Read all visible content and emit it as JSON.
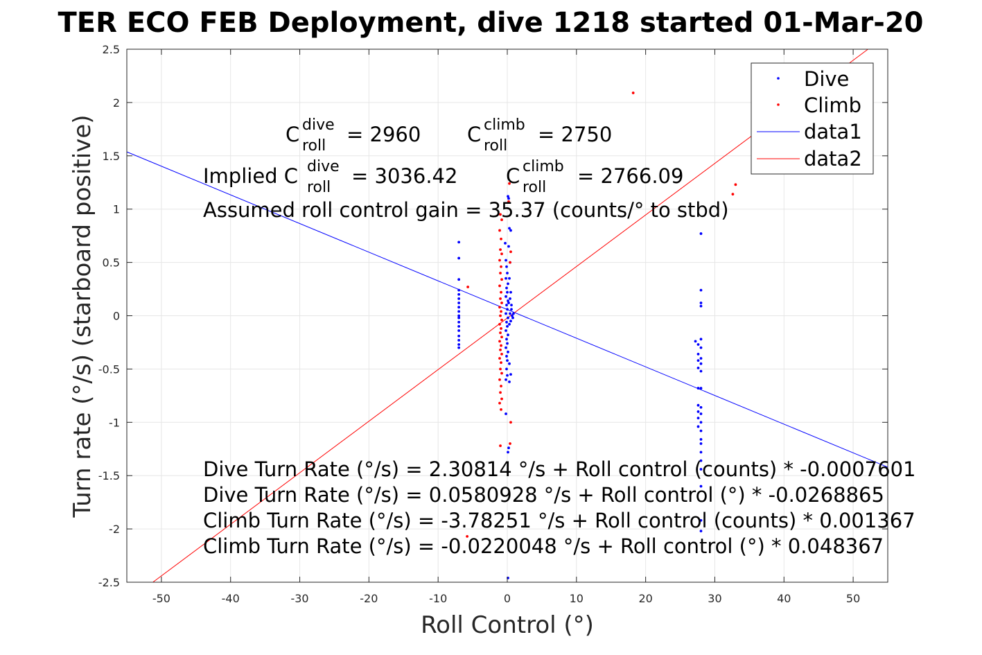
{
  "chart_data": {
    "type": "scatter",
    "title": "TER ECO FEB Deployment, dive 1218 started 01-Mar-20",
    "xlabel": "Roll Control (°)",
    "ylabel": "Turn rate (°/s) (starboard positive)",
    "xlim": [
      -55,
      55
    ],
    "ylim": [
      -2.5,
      2.5
    ],
    "xticks": [
      -50,
      -40,
      -30,
      -20,
      -10,
      0,
      10,
      20,
      30,
      40,
      50
    ],
    "yticks": [
      -2.5,
      -2,
      -1.5,
      -1,
      -0.5,
      0,
      0.5,
      1,
      1.5,
      2,
      2.5
    ],
    "ytick_labels": [
      "-2.5",
      "-2",
      "-1.5",
      "-1",
      "-0.5",
      "0",
      "0.5",
      "1",
      "1.5",
      "2",
      "2.5"
    ],
    "grid": true,
    "legend_position": "top-right",
    "series": [
      {
        "name": "Dive",
        "kind": "points",
        "color": "#0000ff",
        "points": [
          [
            -7,
            0.69
          ],
          [
            -7,
            0.54
          ],
          [
            -7,
            0.34
          ],
          [
            -7,
            0.24
          ],
          [
            -7,
            0.2
          ],
          [
            -7,
            0.16
          ],
          [
            -7,
            0.12
          ],
          [
            -7,
            0.08
          ],
          [
            -7,
            0.04
          ],
          [
            -7,
            0.0
          ],
          [
            -7,
            -0.02
          ],
          [
            -7,
            -0.06
          ],
          [
            -7,
            -0.1
          ],
          [
            -7,
            -0.14
          ],
          [
            -7,
            -0.19
          ],
          [
            -7,
            -0.23
          ],
          [
            -7,
            -0.27
          ],
          [
            -7,
            -0.3
          ],
          [
            -0.3,
            0.68
          ],
          [
            -0.2,
            0.52
          ],
          [
            -0.1,
            0.46
          ],
          [
            0.0,
            0.4
          ],
          [
            -0.2,
            0.35
          ],
          [
            0.1,
            0.3
          ],
          [
            -0.1,
            0.26
          ],
          [
            0.0,
            0.22
          ],
          [
            -0.2,
            0.18
          ],
          [
            0.1,
            0.14
          ],
          [
            -0.1,
            0.1
          ],
          [
            0.0,
            0.06
          ],
          [
            -0.2,
            0.02
          ],
          [
            0.1,
            -0.02
          ],
          [
            -0.1,
            -0.06
          ],
          [
            0.0,
            -0.1
          ],
          [
            -0.2,
            -0.14
          ],
          [
            0.1,
            -0.18
          ],
          [
            -0.1,
            -0.22
          ],
          [
            0.0,
            -0.26
          ],
          [
            -0.2,
            -0.3
          ],
          [
            0.1,
            -0.34
          ],
          [
            -0.1,
            -0.38
          ],
          [
            0.0,
            -0.42
          ],
          [
            -0.1,
            -0.5
          ],
          [
            0.0,
            -0.56
          ],
          [
            -0.2,
            -0.6
          ],
          [
            0.3,
            -0.62
          ],
          [
            -0.2,
            -0.92
          ],
          [
            0.2,
            -1.24
          ],
          [
            0.1,
            -1.28
          ],
          [
            0.1,
            -2.46
          ],
          [
            0.1,
            1.12
          ],
          [
            0.2,
            1.1
          ],
          [
            0.3,
            0.82
          ],
          [
            0.5,
            0.8
          ],
          [
            0.2,
            0.65
          ],
          [
            0.4,
            0.5
          ],
          [
            0.3,
            0.35
          ],
          [
            0.5,
            0.22
          ],
          [
            0.2,
            0.12
          ],
          [
            0.6,
            0.06
          ],
          [
            0.4,
            0.02
          ],
          [
            0.7,
            0.0
          ],
          [
            0.8,
            -0.02
          ],
          [
            0.5,
            -0.05
          ],
          [
            0.9,
            0.02
          ],
          [
            0.3,
            -0.08
          ],
          [
            0.6,
            0.1
          ],
          [
            0.4,
            0.16
          ],
          [
            0.5,
            -0.55
          ],
          [
            0.3,
            -0.45
          ],
          [
            28,
            0.77
          ],
          [
            28,
            0.24
          ],
          [
            28,
            0.12
          ],
          [
            28,
            0.09
          ],
          [
            27.2,
            -0.24
          ],
          [
            28,
            -0.22
          ],
          [
            27.6,
            -0.27
          ],
          [
            28,
            -0.3
          ],
          [
            27.6,
            -0.36
          ],
          [
            28,
            -0.4
          ],
          [
            27.6,
            -0.42
          ],
          [
            28,
            -0.45
          ],
          [
            27.6,
            -0.49
          ],
          [
            28,
            -0.52
          ],
          [
            27.6,
            -0.68
          ],
          [
            28,
            -0.68
          ],
          [
            27.6,
            -0.84
          ],
          [
            28,
            -0.86
          ],
          [
            27.6,
            -0.9
          ],
          [
            28,
            -0.92
          ],
          [
            27.6,
            -0.96
          ],
          [
            28,
            -1.0
          ],
          [
            27.6,
            -1.04
          ],
          [
            28,
            -1.08
          ],
          [
            28,
            -1.16
          ],
          [
            28,
            -1.2
          ],
          [
            28,
            -1.28
          ],
          [
            28,
            -1.36
          ],
          [
            28,
            -1.44
          ],
          [
            28,
            -1.6
          ],
          [
            28,
            -1.92
          ],
          [
            28,
            -2.02
          ]
        ]
      },
      {
        "name": "Climb",
        "kind": "points",
        "color": "#ff0000",
        "points": [
          [
            18.2,
            2.09
          ],
          [
            33.0,
            1.23
          ],
          [
            32.6,
            1.14
          ],
          [
            -5.7,
            0.27
          ],
          [
            -5.8,
            -2.07
          ],
          [
            0.3,
            1.24
          ],
          [
            0.2,
            1.07
          ],
          [
            0.5,
            0.6
          ],
          [
            0.4,
            0.5
          ],
          [
            0.5,
            -1.0
          ],
          [
            0.4,
            -1.2
          ],
          [
            -1.0,
            -1.22
          ],
          [
            -1.0,
            0.95
          ],
          [
            -0.8,
            0.9
          ],
          [
            -1.1,
            0.8
          ],
          [
            -0.9,
            0.72
          ],
          [
            -1.0,
            0.62
          ],
          [
            -0.8,
            0.58
          ],
          [
            -1.1,
            0.52
          ],
          [
            -0.9,
            0.46
          ],
          [
            -1.0,
            0.4
          ],
          [
            -0.8,
            0.34
          ],
          [
            -1.1,
            0.28
          ],
          [
            -0.9,
            0.22
          ],
          [
            -1.0,
            0.16
          ],
          [
            -0.8,
            0.12
          ],
          [
            -1.1,
            0.08
          ],
          [
            -0.9,
            0.04
          ],
          [
            -1.0,
            0.0
          ],
          [
            -0.8,
            -0.04
          ],
          [
            -1.1,
            -0.08
          ],
          [
            -0.9,
            -0.12
          ],
          [
            -1.0,
            -0.16
          ],
          [
            -0.8,
            -0.2
          ],
          [
            -1.1,
            -0.24
          ],
          [
            -0.9,
            -0.28
          ],
          [
            -1.0,
            -0.32
          ],
          [
            -0.8,
            -0.36
          ],
          [
            -1.1,
            -0.4
          ],
          [
            -0.9,
            -0.44
          ],
          [
            -1.0,
            -0.5
          ],
          [
            -0.8,
            -0.54
          ],
          [
            -1.1,
            -0.6
          ],
          [
            -0.9,
            -0.66
          ],
          [
            -1.0,
            -0.72
          ],
          [
            -0.8,
            -0.78
          ],
          [
            -1.1,
            -0.82
          ],
          [
            -0.9,
            -0.88
          ]
        ]
      },
      {
        "name": "data1",
        "kind": "line",
        "color": "#0000ff",
        "intercept": 0.0580928,
        "slope": -0.0268865
      },
      {
        "name": "data2",
        "kind": "line",
        "color": "#ff0000",
        "intercept": -0.0220048,
        "slope": 0.048367
      }
    ],
    "annotations": {
      "c_roll_dive": {
        "prefix": "C",
        "sup": "dive",
        "sub": "roll",
        "value": "= 2960"
      },
      "c_roll_climb": {
        "prefix": "C",
        "sup": "climb",
        "sub": "roll",
        "value": "= 2750"
      },
      "implied_dive": {
        "prefix": "Implied C",
        "sup": "dive",
        "sub": "roll",
        "value": "= 3036.42"
      },
      "implied_climb": {
        "prefix": "C",
        "sup": "climb",
        "sub": "roll",
        "value": "= 2766.09"
      },
      "gain": "Assumed roll control gain = 35.37 (counts/° to stbd)",
      "fit_lines": [
        "Dive Turn Rate (°/s) = 2.30814 °/s + Roll control (counts) * -0.0007601",
        "Dive Turn Rate (°/s) = 0.0580928 °/s + Roll control (°) * -0.0268865",
        "Climb Turn Rate (°/s) = -3.78251 °/s + Roll control (counts) * 0.001367",
        "Climb Turn Rate (°/s) = -0.0220048 °/s + Roll control (°) * 0.048367"
      ]
    }
  }
}
